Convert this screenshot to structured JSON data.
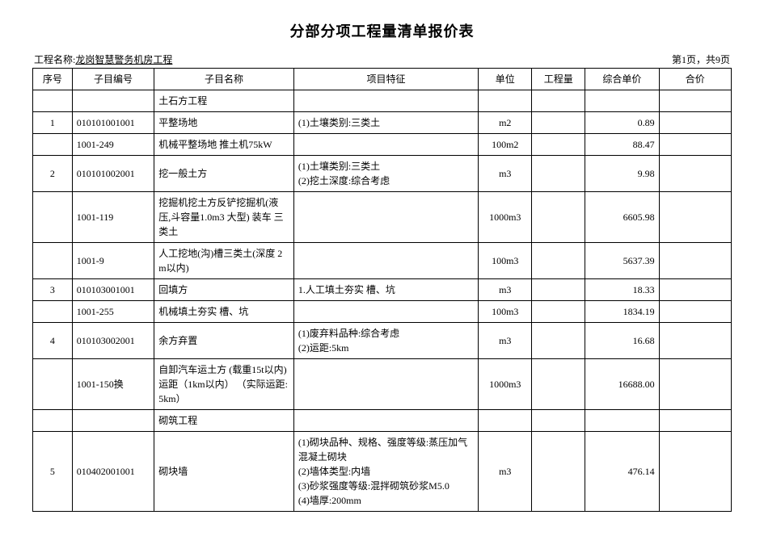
{
  "title": "分部分项工程量清单报价表",
  "project_label": "工程名称:",
  "project_name": "龙岗智慧警务机房工程",
  "page_info": "第1页，共9页",
  "columns": [
    "序号",
    "子目编号",
    "子目名称",
    "项目特征",
    "单位",
    "工程量",
    "综合单价",
    "合价"
  ],
  "rows": [
    {
      "seq": "",
      "code": "",
      "name": "土石方工程",
      "feat": "",
      "unit": "",
      "qty": "",
      "price": "",
      "total": ""
    },
    {
      "seq": "1",
      "code": "010101001001",
      "name": "平整场地",
      "feat": "(1)土壤类别:三类土",
      "unit": "m2",
      "qty": "",
      "price": "0.89",
      "total": ""
    },
    {
      "seq": "",
      "code": "1001-249",
      "name": "机械平整场地 推土机75kW",
      "feat": "",
      "unit": "100m2",
      "qty": "",
      "price": "88.47",
      "total": ""
    },
    {
      "seq": "2",
      "code": "010101002001",
      "name": "挖一般土方",
      "feat": "(1)土壤类别:三类土\n(2)挖土深度:综合考虑",
      "unit": "m3",
      "qty": "",
      "price": "9.98",
      "total": ""
    },
    {
      "seq": "",
      "code": "1001-119",
      "name": "挖掘机挖土方反铲挖掘机(液压,斗容量1.0m3 大型) 装车 三类土",
      "feat": "",
      "unit": "1000m3",
      "qty": "",
      "price": "6605.98",
      "total": ""
    },
    {
      "seq": "",
      "code": "1001-9",
      "name": "人工挖地(沟)槽三类土(深度 2m以内)",
      "feat": "",
      "unit": "100m3",
      "qty": "",
      "price": "5637.39",
      "total": ""
    },
    {
      "seq": "3",
      "code": "010103001001",
      "name": "回填方",
      "feat": "1.人工填土夯实  槽、坑",
      "unit": "m3",
      "qty": "",
      "price": "18.33",
      "total": ""
    },
    {
      "seq": "",
      "code": "1001-255",
      "name": "机械填土夯实 槽、坑",
      "feat": "",
      "unit": "100m3",
      "qty": "",
      "price": "1834.19",
      "total": ""
    },
    {
      "seq": "4",
      "code": "010103002001",
      "name": "余方弃置",
      "feat": "(1)废弃料品种:综合考虑\n(2)运距:5km",
      "unit": "m3",
      "qty": "",
      "price": "16.68",
      "total": ""
    },
    {
      "seq": "",
      "code": "1001-150换",
      "name": "自卸汽车运土方 (载重15t以内) 运距（1km以内）  （实际运距:5km）",
      "feat": "",
      "unit": "1000m3",
      "qty": "",
      "price": "16688.00",
      "total": ""
    },
    {
      "seq": "",
      "code": "",
      "name": "砌筑工程",
      "feat": "",
      "unit": "",
      "qty": "",
      "price": "",
      "total": ""
    },
    {
      "seq": "5",
      "code": "010402001001",
      "name": "砌块墙",
      "feat": "(1)砌块品种、规格、强度等级:蒸压加气混凝土砌块\n(2)墙体类型:内墙\n(3)砂浆强度等级:混拌砌筑砂浆M5.0\n(4)墙厚:200mm",
      "unit": "m3",
      "qty": "",
      "price": "476.14",
      "total": ""
    }
  ],
  "style": {
    "background_color": "#ffffff",
    "border_color": "#000000",
    "title_fontsize": 18,
    "body_fontsize": 12,
    "font_family": "SimSun"
  }
}
